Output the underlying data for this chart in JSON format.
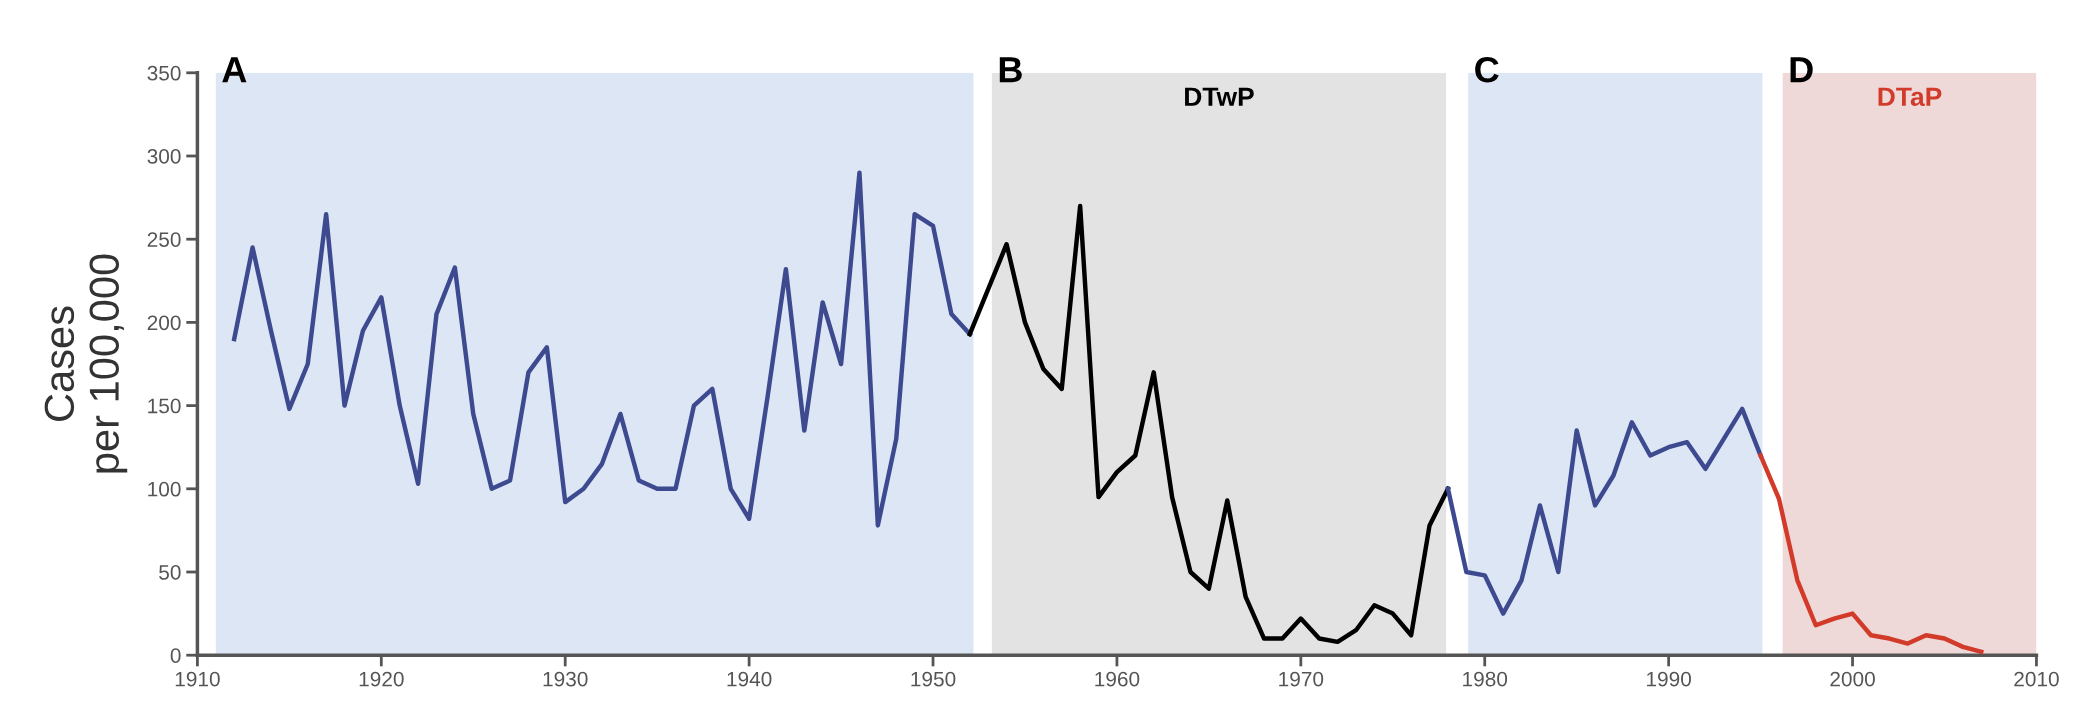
{
  "chart_data": {
    "type": "line",
    "ylabel": "Cases\nper 100,000",
    "xlim": [
      1910,
      2010
    ],
    "ylim": [
      0,
      350
    ],
    "xticks": [
      1910,
      1920,
      1930,
      1940,
      1950,
      1960,
      1970,
      1980,
      1990,
      2000,
      2010
    ],
    "yticks": [
      0,
      50,
      100,
      150,
      200,
      250,
      300,
      350
    ],
    "grid": false,
    "legend": false,
    "series": [
      {
        "color": "#3d4a8f",
        "x": [
          1912,
          1913,
          1914,
          1915,
          1916,
          1917,
          1918,
          1919,
          1920,
          1921,
          1922,
          1923,
          1924,
          1925,
          1926,
          1927,
          1928,
          1929,
          1930,
          1931,
          1932,
          1933,
          1934,
          1935,
          1936,
          1937,
          1938,
          1939,
          1940,
          1941,
          1942,
          1943,
          1944,
          1945,
          1946,
          1947,
          1948,
          1949,
          1950,
          1951,
          1952
        ],
        "values": [
          190,
          245,
          195,
          148,
          175,
          265,
          150,
          195,
          215,
          150,
          103,
          205,
          233,
          145,
          100,
          105,
          170,
          185,
          92,
          100,
          115,
          145,
          105,
          100,
          100,
          150,
          160,
          100,
          82,
          155,
          232,
          135,
          212,
          175,
          290,
          78,
          130,
          265,
          258,
          205,
          193
        ]
      },
      {
        "color": "#000000",
        "x": [
          1952,
          1953,
          1954,
          1955,
          1956,
          1957,
          1958,
          1959,
          1960,
          1961,
          1962,
          1963,
          1964,
          1965,
          1966,
          1967,
          1968,
          1969,
          1970,
          1971,
          1972,
          1973,
          1974,
          1975,
          1976,
          1977,
          1978
        ],
        "values": [
          193,
          220,
          247,
          200,
          172,
          160,
          270,
          95,
          110,
          120,
          170,
          95,
          50,
          40,
          93,
          35,
          10,
          10,
          22,
          10,
          8,
          15,
          30,
          25,
          12,
          78,
          100
        ]
      },
      {
        "color": "#3d4a8f",
        "x": [
          1978,
          1979,
          1980,
          1981,
          1982,
          1983,
          1984,
          1985,
          1986,
          1987,
          1988,
          1989,
          1990,
          1991,
          1992,
          1993,
          1994,
          1995
        ],
        "values": [
          100,
          50,
          48,
          25,
          45,
          90,
          50,
          135,
          90,
          108,
          140,
          120,
          125,
          128,
          112,
          130,
          148,
          120
        ]
      },
      {
        "color": "#d23a2a",
        "x": [
          1995,
          1996,
          1997,
          1998,
          1999,
          2000,
          2001,
          2002,
          2003,
          2004,
          2005,
          2006,
          2007
        ],
        "values": [
          120,
          94,
          45,
          18,
          22,
          25,
          12,
          10,
          7,
          12,
          10,
          5,
          2
        ]
      }
    ],
    "bands": [
      {
        "axis": "x",
        "from": 1911,
        "to": 1952.2,
        "label": "A",
        "color": "#dde6f4"
      },
      {
        "axis": "x",
        "from": 1953.2,
        "to": 1977.9,
        "label": "B",
        "color": "#e4e3e3"
      },
      {
        "axis": "x",
        "from": 1979.1,
        "to": 1995.1,
        "label": "C",
        "color": "#dde6f4"
      },
      {
        "axis": "x",
        "from": 1996.2,
        "to": 2010,
        "label": "D",
        "color": "#efd8d8"
      }
    ],
    "annotations": [
      "DTwP",
      "DTaP"
    ]
  }
}
